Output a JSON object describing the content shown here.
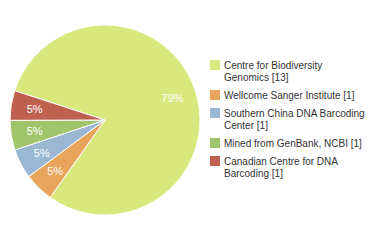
{
  "chart_data": {
    "type": "pie",
    "categories": [
      "Centre for Biodiversity\nGenomics [13]",
      "Wellcome Sanger Institute [1]",
      "Southern China DNA Barcoding\nCenter [1]",
      "Mined from GenBank, NCBI [1]",
      "Canadian Centre for DNA\nBarcoding [1]"
    ],
    "values": [
      79,
      5,
      5,
      5,
      5
    ],
    "value_labels": [
      "79%",
      "5%",
      "5%",
      "5%",
      "5%"
    ],
    "colors": [
      "#d9e87c",
      "#e8a45a",
      "#9ab8d4",
      "#9fc46a",
      "#c06050"
    ],
    "data_labels": true,
    "legend": "right"
  }
}
